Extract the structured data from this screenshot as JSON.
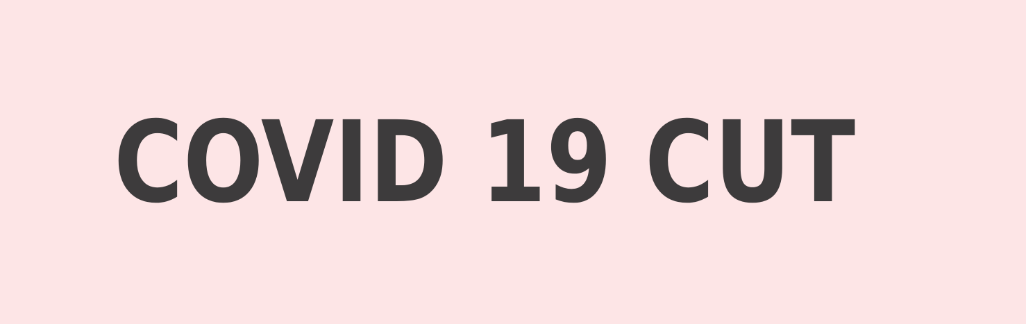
{
  "banner": {
    "headline": "COVID 19 CUT",
    "background_color": "#fde5e6",
    "text_color": "#3d3b3c"
  }
}
